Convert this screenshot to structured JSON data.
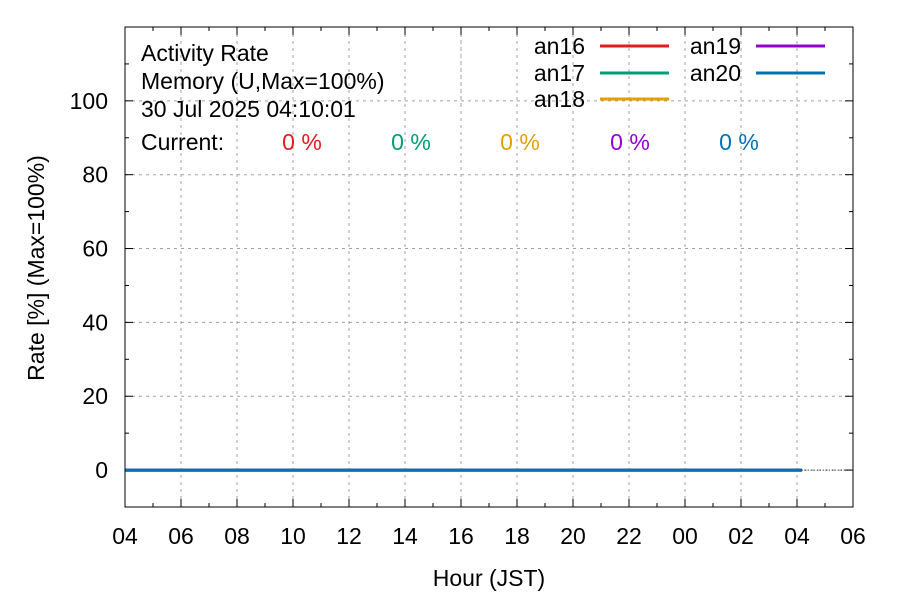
{
  "info": {
    "line1": "Activity Rate",
    "line2": "Memory (U,Max=100%)",
    "line3": "30 Jul 2025 04:10:01",
    "current_label": "Current:"
  },
  "colors": {
    "axis": "#000000",
    "grid": "#a0a0a0"
  },
  "chart_data": {
    "type": "line",
    "title": "",
    "xlabel": "Hour (JST)",
    "ylabel": "Rate [%]  (Max=100%)",
    "xticks": [
      "04",
      "06",
      "08",
      "10",
      "12",
      "14",
      "16",
      "18",
      "20",
      "22",
      "00",
      "02",
      "04",
      "06"
    ],
    "yticks": [
      0,
      20,
      40,
      60,
      80,
      100
    ],
    "xlim_hours": [
      0,
      26
    ],
    "ylim": [
      -10,
      120
    ],
    "grid": true,
    "legend_position": "top-right",
    "series": [
      {
        "name": "an16",
        "color": "#e41a1c",
        "current": "0 %",
        "x_hours": [
          0,
          24.17
        ],
        "values": [
          0,
          0
        ]
      },
      {
        "name": "an17",
        "color": "#009e73",
        "current": "0 %",
        "x_hours": [
          0,
          24.17
        ],
        "values": [
          0,
          0
        ]
      },
      {
        "name": "an18",
        "color": "#e69f00",
        "current": "0 %",
        "x_hours": [
          0,
          24.17
        ],
        "values": [
          0,
          0
        ]
      },
      {
        "name": "an19",
        "color": "#9400d3",
        "current": "0 %",
        "x_hours": [
          0,
          24.17
        ],
        "values": [
          0,
          0
        ]
      },
      {
        "name": "an20",
        "color": "#0072b2",
        "current": "0 %",
        "x_hours": [
          0,
          24.17
        ],
        "values": [
          0,
          0
        ]
      }
    ]
  }
}
